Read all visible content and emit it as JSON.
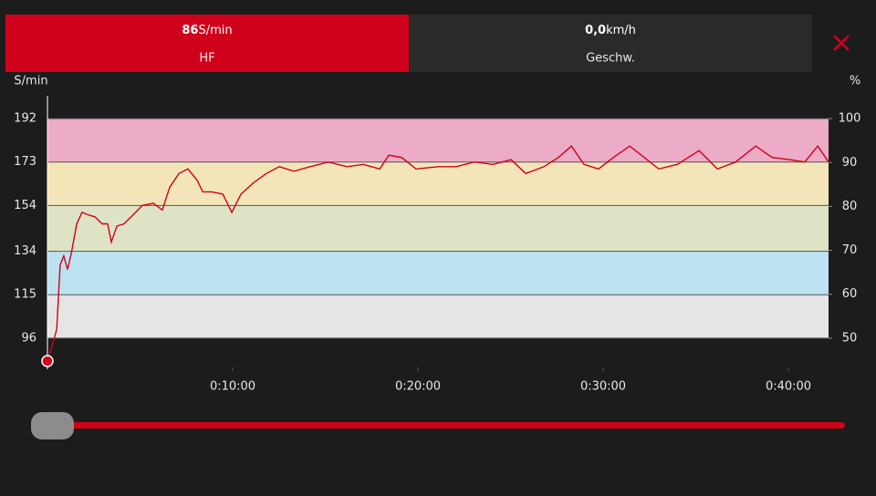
{
  "header": {
    "tabs": [
      {
        "value": 86,
        "unit": "S/min",
        "label": "HF"
      },
      {
        "value": "0,0",
        "unit": "km/h",
        "label": "Geschw."
      }
    ]
  },
  "chart_data": {
    "type": "line",
    "y_label": "S/min",
    "y2_label": "%",
    "xlim": [
      0,
      2530
    ],
    "xticks": [
      {
        "value": 600,
        "label": "0:10:00"
      },
      {
        "value": 1200,
        "label": "0:20:00"
      },
      {
        "value": 1800,
        "label": "0:30:00"
      },
      {
        "value": 2400,
        "label": "0:40:00"
      }
    ],
    "ylim": [
      84,
      202
    ],
    "yticks": [
      96,
      115,
      134,
      154,
      173,
      192
    ],
    "y2lim": [
      43.75,
      105.21
    ],
    "y2ticks": [
      50,
      60,
      70,
      80,
      90,
      100
    ],
    "zone_colors": [
      "#e5e5e5",
      "#bde3f2",
      "#dde3c4",
      "#f4e5b8",
      "#ecabc6"
    ],
    "series": [
      {
        "color": "#d0021b",
        "x": [
          0,
          18,
          30,
          41,
          53,
          65,
          77,
          95,
          112,
          130,
          154,
          177,
          195,
          207,
          225,
          248,
          278,
          307,
          343,
          372,
          396,
          426,
          455,
          485,
          503,
          532,
          568,
          597,
          627,
          668,
          709,
          751,
          798,
          851,
          910,
          970,
          1023,
          1076,
          1106,
          1147,
          1194,
          1265,
          1324,
          1383,
          1443,
          1502,
          1549,
          1608,
          1655,
          1697,
          1738,
          1785,
          1833,
          1886,
          1933,
          1980,
          2040,
          2111,
          2170,
          2229,
          2294,
          2347,
          2406,
          2453,
          2495,
          2530
        ],
        "values": [
          86,
          94,
          100,
          128,
          132,
          126,
          133,
          146,
          151,
          150,
          149,
          146,
          146,
          138,
          145,
          146,
          150,
          154,
          155,
          152,
          162,
          168,
          170,
          165,
          160,
          160,
          159,
          151,
          159,
          164,
          168,
          171,
          169,
          171,
          173,
          171,
          172,
          170,
          176,
          175,
          170,
          171,
          171,
          173,
          172,
          174,
          168,
          171,
          175,
          180,
          172,
          170,
          175,
          180,
          175,
          170,
          172,
          178,
          170,
          173,
          180,
          175,
          174,
          173,
          180,
          173
        ]
      }
    ]
  }
}
